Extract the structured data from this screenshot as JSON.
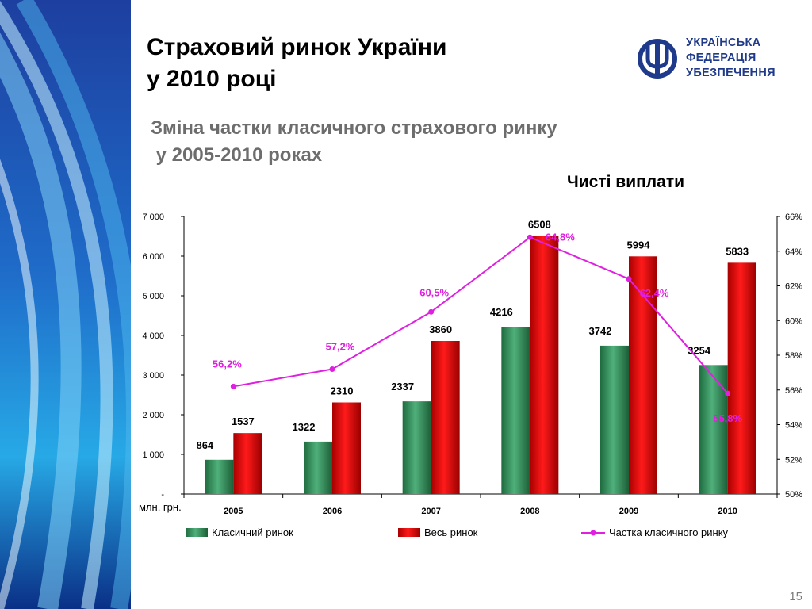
{
  "slide": {
    "title_line1": "Страховий ринок України",
    "title_line2": "у 2010 році",
    "subtitle_line1": "Зміна частки класичного страхового ринку",
    "subtitle_line2": " у 2005-2010 роках",
    "page_number": "15"
  },
  "logo": {
    "line1": "УКРАЇНСЬКА",
    "line2": "ФЕДЕРАЦІЯ",
    "line3": "УБЕЗПЕЧЕННЯ",
    "color": "#1f3a8a"
  },
  "chart_data": {
    "type": "bar",
    "title": "Чисті виплати",
    "categories": [
      "2005",
      "2006",
      "2007",
      "2008",
      "2009",
      "2010"
    ],
    "y_unit_label": "млн. грн.",
    "ylim": [
      0,
      7000
    ],
    "y_ticks": [
      "-",
      "1 000",
      "2 000",
      "3 000",
      "4 000",
      "5 000",
      "6 000",
      "7 000"
    ],
    "y2lim": [
      50,
      66
    ],
    "y2_ticks": [
      "50%",
      "52%",
      "54%",
      "56%",
      "58%",
      "60%",
      "62%",
      "64%",
      "66%"
    ],
    "legend_position": "bottom",
    "series": [
      {
        "name": "Класичний ринок",
        "type": "bar",
        "color": "#2e8b57",
        "values": [
          864,
          1322,
          2337,
          4216,
          3742,
          3254
        ],
        "labels": [
          "864",
          "1322",
          "2337",
          "4216",
          "3742",
          "3254"
        ]
      },
      {
        "name": "Весь ринок",
        "type": "bar",
        "color": "#e00000",
        "values": [
          1537,
          2310,
          3860,
          6508,
          5994,
          5833
        ],
        "labels": [
          "1537",
          "2310",
          "3860",
          "6508",
          "5994",
          "5833"
        ]
      },
      {
        "name": "Частка класичного ринку",
        "type": "line",
        "axis": "y2",
        "color": "#e020e0",
        "values": [
          56.2,
          57.2,
          60.5,
          64.8,
          62.4,
          55.8
        ],
        "labels": [
          "56,2%",
          "57,2%",
          "60,5%",
          "64,8%",
          "62,4%",
          "55,8%"
        ]
      }
    ]
  }
}
